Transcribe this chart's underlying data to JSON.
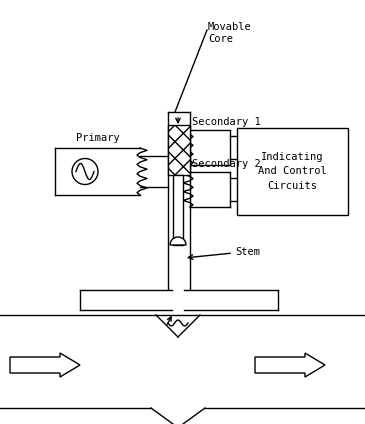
{
  "bg_color": "#ffffff",
  "line_color": "#000000",
  "labels": {
    "movable_core": "Movable\nCore",
    "primary": "Primary",
    "secondary1": "Secondary 1",
    "secondary2": "Secondary 2",
    "stem": "Stem",
    "indicating": "Indicating\nAnd Control\nCircuits"
  },
  "figsize": [
    3.65,
    4.24
  ],
  "dpi": 100
}
